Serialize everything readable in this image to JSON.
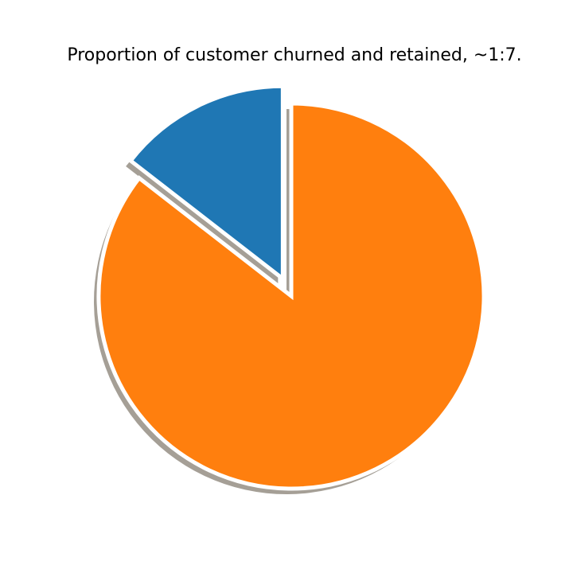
{
  "chart_data": {
    "type": "pie",
    "title": "Proportion of customer churned and retained, ~1:7.",
    "start_angle_deg": 90,
    "direction": "counterclockwise",
    "shadow": true,
    "slices": [
      {
        "name": "",
        "value": 14.5,
        "color": "#1f77b4",
        "exploded": true
      },
      {
        "name": "",
        "value": 85.5,
        "color": "#ff7f0e",
        "exploded": false
      }
    ]
  }
}
